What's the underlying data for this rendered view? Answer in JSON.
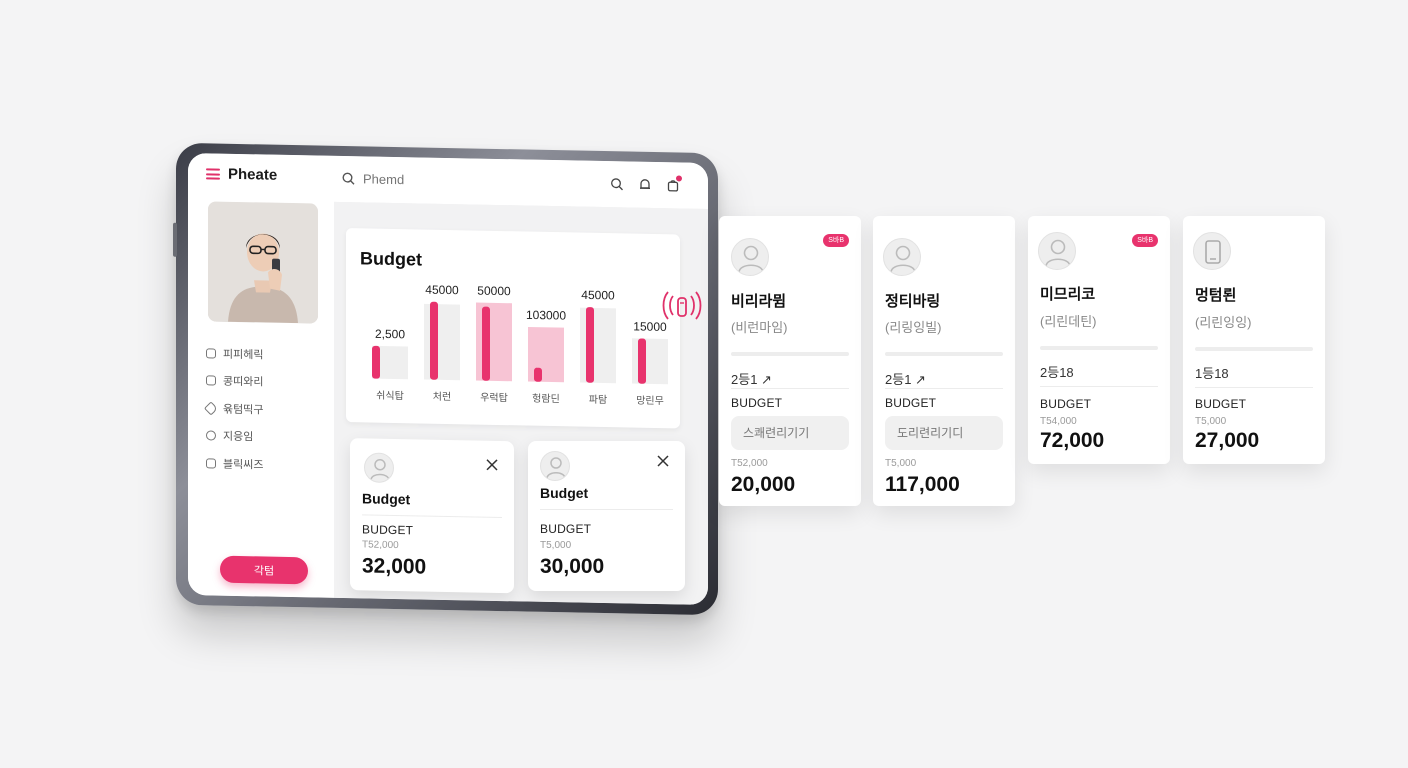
{
  "app": {
    "brand": "Pheate"
  },
  "search": {
    "placeholder": "Phemd"
  },
  "sidebar": {
    "nav": [
      {
        "label": "피피헤릭",
        "icon": "grid-icon"
      },
      {
        "label": "콩띠와리",
        "icon": "plus-square-icon"
      },
      {
        "label": "윢텀띡구",
        "icon": "tag-icon"
      },
      {
        "label": "지응임",
        "icon": "circle-icon"
      },
      {
        "label": "블릭씨즈",
        "icon": "edit-icon"
      }
    ],
    "cta_label": "각텀"
  },
  "chart_data": {
    "type": "bar",
    "title": "Budget",
    "categories": [
      "쉬식탑",
      "처런",
      "우럭탑",
      "헝람딘",
      "파탐",
      "망린무"
    ],
    "data_labels": [
      "2,500",
      "45000",
      "50000",
      "103000",
      "45000",
      "15000"
    ],
    "series": [
      {
        "values": [
          0.42,
          1.0,
          0.95,
          0.18,
          0.97,
          0.58
        ]
      }
    ],
    "background_values": [
      0.42,
      0.97,
      1.0,
      0.7,
      0.96,
      0.58
    ],
    "ylim": [
      0,
      1
    ],
    "grid": false
  },
  "mini_cards": [
    {
      "title": "Budget",
      "label": "BUDGET",
      "small": "T52,000",
      "value": "32,000"
    },
    {
      "title": "Budget",
      "label": "BUDGET",
      "small": "T5,000",
      "value": "30,000"
    }
  ],
  "cards": [
    {
      "name": "비리라뮘",
      "sub": "(비런마임)",
      "badge": "S바B",
      "count": "2등1 ↗",
      "label": "BUDGET",
      "pill": "스쾌련리기기",
      "small": "T52,000",
      "value": "20,000",
      "avatar": "person-icon"
    },
    {
      "name": "정티바링",
      "sub": "(리링잉빌)",
      "badge": "",
      "count": "2등1 ↗",
      "label": "BUDGET",
      "pill": "도리련리기디",
      "small": "T5,000",
      "value": "117,000",
      "avatar": "person-icon"
    },
    {
      "name": "미므리코",
      "sub": "(리린데틴)",
      "badge": "S바B",
      "count": "2등18",
      "label": "BUDGET",
      "pill": "",
      "small": "T54,000",
      "value": "72,000",
      "avatar": "person-icon"
    },
    {
      "name": "멍텀뢴",
      "sub": "(리린잉잉)",
      "badge": "",
      "count": "1등18",
      "label": "BUDGET",
      "pill": "",
      "small": "T5,000",
      "value": "27,000",
      "avatar": "tablet-icon"
    }
  ],
  "colors": {
    "accent": "#e8336d",
    "accent_light": "#f7c4d4",
    "bar_bg": "#efefef"
  }
}
